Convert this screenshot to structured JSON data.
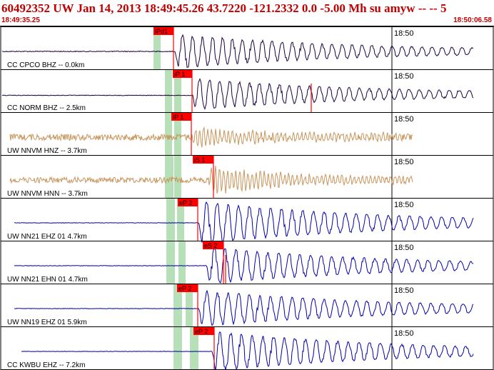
{
  "header": {
    "title": "60492352 UW Jan 14, 2013 18:49:45.26   43.7220 -121.2332  0.0 -5.00 Mh su amyw -- --   5",
    "start_time": "18:49:35.25",
    "end_time": "18:50:06.58"
  },
  "colors": {
    "header_text": "#c00000",
    "pick_box": "#ff0000",
    "pick_window": "#b8e0b8",
    "short_period_trace": "#1a0040",
    "strong_motion_trace": "#c8955c",
    "broadband_trace": "#0000b0"
  },
  "panels": [
    {
      "label": "CC CPCO BHZ -- 0.0km",
      "pick": "iPd1",
      "time_mark": "18:50",
      "trace_color": "#1a0040"
    },
    {
      "label": "CC NORM BHZ -- 2.5km",
      "pick": "iP 1",
      "time_mark": "18:50",
      "trace_color": "#1a0040"
    },
    {
      "label": "UW NNVM HNZ -- 3.7km",
      "pick": "iP 1",
      "time_mark": "18:50",
      "trace_color": "#c8955c"
    },
    {
      "label": "UW NNVM HNN -- 3.7km",
      "pick": "iS 1",
      "time_mark": "18:50",
      "trace_color": "#c8955c"
    },
    {
      "label": "UW NN21 EHZ 01 4.7km",
      "pick": "eP 2",
      "time_mark": "18:50",
      "trace_color": "#0000b0"
    },
    {
      "label": "UW NN21 EHN 01 4.7km",
      "pick": "eS 2",
      "time_mark": "18:50",
      "trace_color": "#0000b0"
    },
    {
      "label": "UW NN19 EHZ 01 5.9km",
      "pick": "eP 2",
      "time_mark": "18:50",
      "trace_color": "#0000b0"
    },
    {
      "label": "CC KWBU EHZ -- 7.2km",
      "pick": "eP 2",
      "time_mark": "18:50",
      "trace_color": "#0000b0"
    }
  ]
}
